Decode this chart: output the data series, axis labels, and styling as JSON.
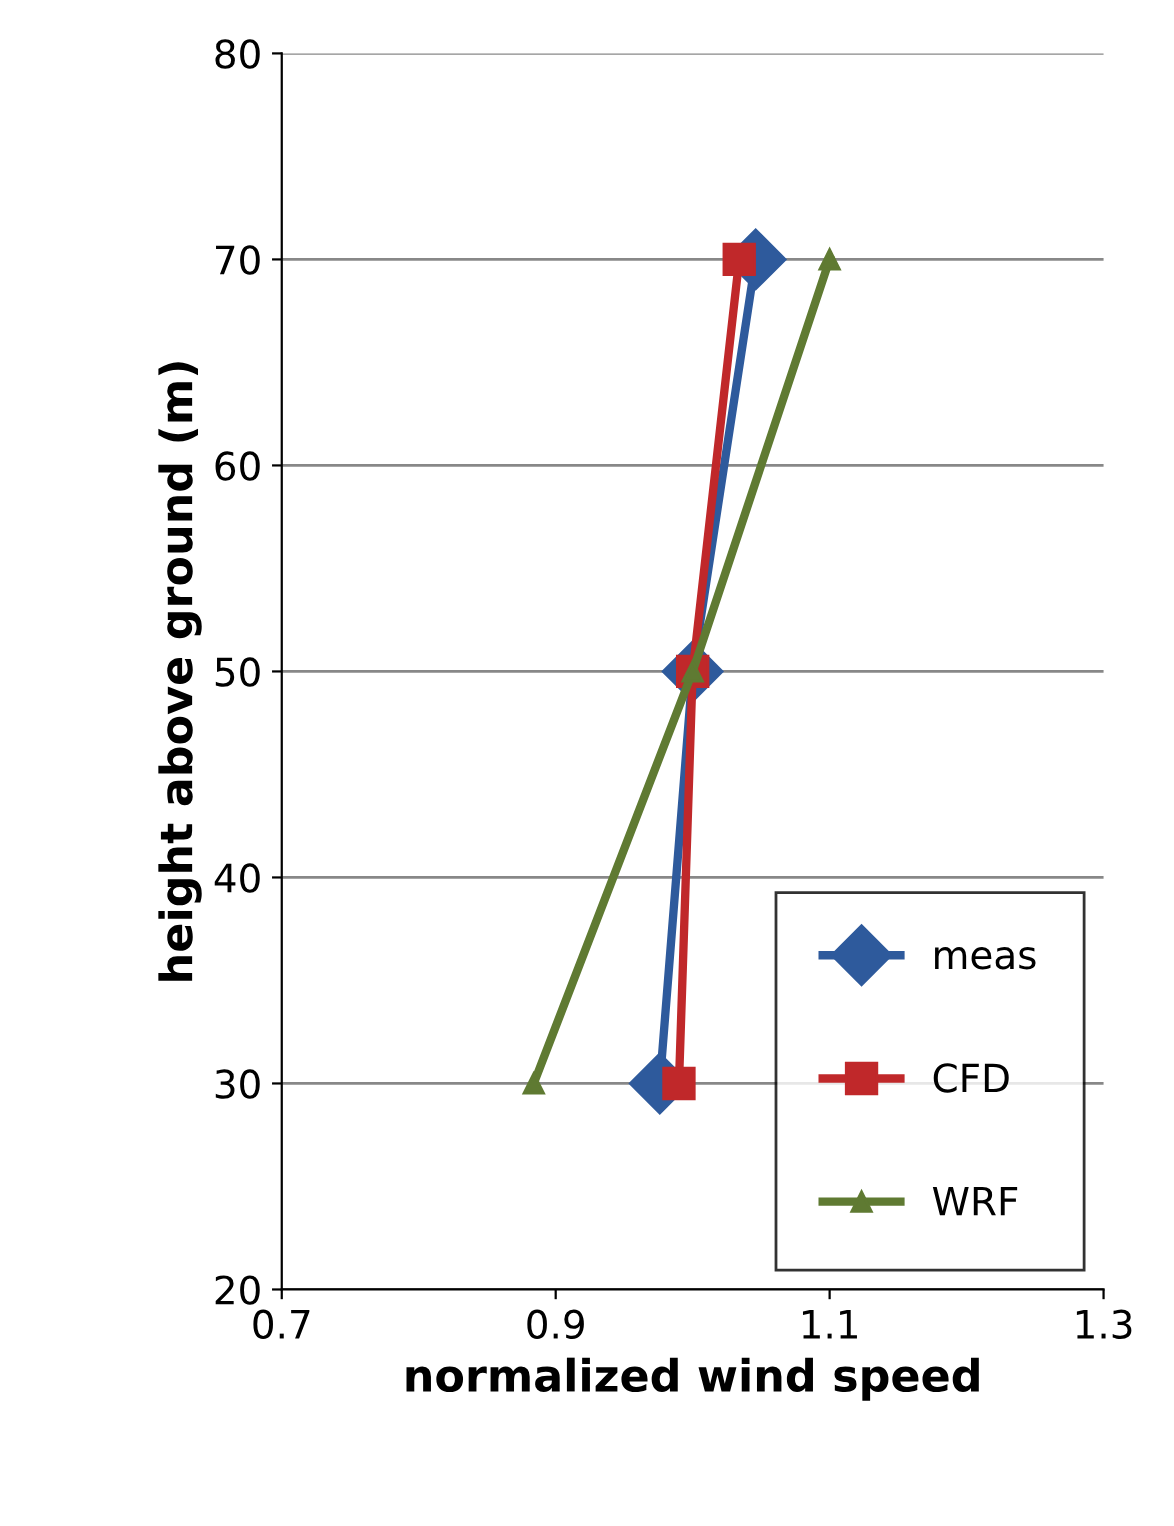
{
  "chart_data": {
    "type": "line",
    "xlabel": "normalized wind speed",
    "ylabel": "height above ground (m)",
    "series": [
      {
        "name": "meas",
        "color": "#2e5a9c",
        "x": [
          0.976,
          1.0,
          1.046
        ],
        "values": [
          30,
          50,
          70
        ],
        "marker": "diamond"
      },
      {
        "name": "CFD",
        "color": "#c0282a",
        "x": [
          0.99,
          1.0,
          1.034
        ],
        "values": [
          30,
          50,
          70
        ],
        "marker": "square"
      },
      {
        "name": "WRF",
        "color": "#5f7a32",
        "x": [
          0.884,
          1.0,
          1.1
        ],
        "values": [
          30,
          50,
          70
        ],
        "marker": "triangle"
      }
    ],
    "xlim": [
      0.7,
      1.3
    ],
    "xticks": [
      {
        "value": 0.7,
        "label": "0.7"
      },
      {
        "value": 0.9,
        "label": "0.9"
      },
      {
        "value": 1.1,
        "label": "1.1"
      },
      {
        "value": 1.3,
        "label": "1.3"
      }
    ],
    "ylim": [
      20,
      80
    ],
    "yticks": [
      20,
      30,
      40,
      50,
      60,
      70,
      80
    ],
    "grid": "y",
    "legend": "bottom right",
    "line_style": "solid"
  }
}
